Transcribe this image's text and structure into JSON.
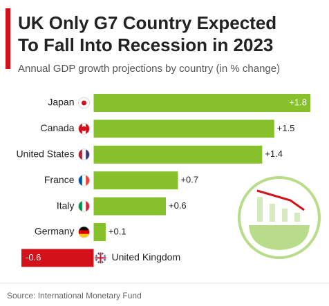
{
  "chart_data": {
    "type": "bar",
    "title": [
      "UK Only G7 Country Expected",
      "To Fall Into Recession in 2023"
    ],
    "subtitle": "Annual GDP growth projections by country (in % change)",
    "categories": [
      "Japan",
      "Canada",
      "United States",
      "France",
      "Italy",
      "Germany",
      "United Kingdom"
    ],
    "values": [
      1.8,
      1.5,
      1.4,
      0.7,
      0.6,
      0.1,
      -0.6
    ],
    "value_labels": [
      "+1.8",
      "+1.5",
      "+1.4",
      "+0.7",
      "+0.6",
      "+0.1",
      "-0.6"
    ],
    "color": "#86c12c",
    "negative_color": "#d3111b",
    "xlim": [
      -0.6,
      1.8
    ],
    "source": "Source: International Monetary Fund"
  }
}
